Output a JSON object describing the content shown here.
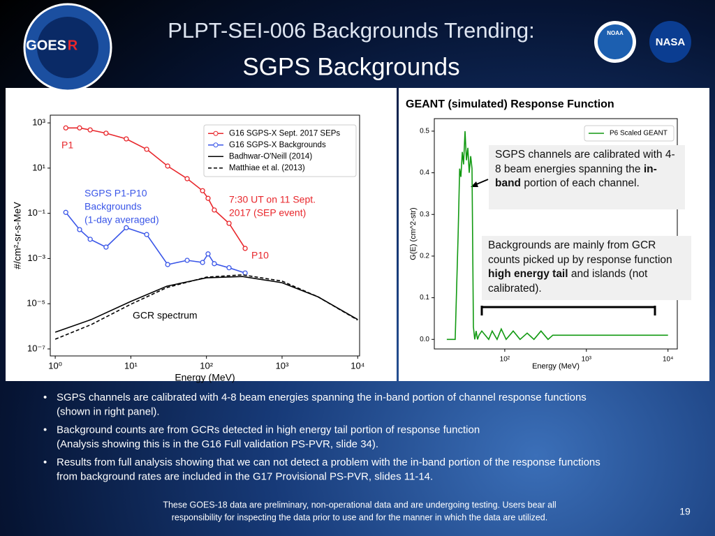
{
  "header": {
    "title_lines": [
      "PLPT-SEI-006 Backgrounds Trending:",
      "SGPS Backgrounds"
    ],
    "logos": [
      "GOES",
      "R",
      "NOAA",
      "NASA"
    ]
  },
  "chart_data": [
    {
      "type": "line",
      "xlabel": "Energy (MeV)",
      "ylabel": "#/cm²-sr-s-MeV",
      "xlog": true,
      "ylog": true,
      "xlim": [
        0.86,
        10600
      ],
      "ylim": [
        4.9e-08,
        2200
      ],
      "xticks": [
        {
          "value": 1,
          "label": "10⁰"
        },
        {
          "value": 10,
          "label": "10¹"
        },
        {
          "value": 100,
          "label": "10²"
        },
        {
          "value": 1000,
          "label": "10³"
        },
        {
          "value": 10000,
          "label": "10⁴"
        }
      ],
      "yticks": [
        {
          "value": 1e-07,
          "label": "10⁻⁷"
        },
        {
          "value": 1e-05,
          "label": "10⁻⁵"
        },
        {
          "value": 0.001,
          "label": "10⁻³"
        },
        {
          "value": 0.1,
          "label": "10⁻¹"
        },
        {
          "value": 10,
          "label": "10¹"
        },
        {
          "value": 1000,
          "label": "10³"
        }
      ],
      "legend": "upper right",
      "series": [
        {
          "name": "G16 SGPS-X Sept. 2017 SEPs",
          "color": "#e8262b",
          "marker": "circle",
          "style": "solid",
          "x": [
            1.38,
            2.1,
            2.9,
            4.7,
            8.7,
            16.2,
            30.7,
            55.6,
            88.8,
            105,
            127,
            199,
            325
          ],
          "values": [
            600,
            600,
            490,
            350,
            196,
            68,
            12.3,
            3.4,
            1.0,
            0.46,
            0.14,
            0.036,
            0.0028
          ]
        },
        {
          "name": "G16 SGPS-X Backgrounds",
          "color": "#3a56e8",
          "marker": "circle",
          "style": "solid",
          "x": [
            1.38,
            2.1,
            2.9,
            4.7,
            8.7,
            16.2,
            30.7,
            55.6,
            88.8,
            105,
            127,
            199,
            325
          ],
          "values": [
            0.11,
            0.019,
            0.0071,
            0.0032,
            0.023,
            0.0115,
            0.00054,
            0.00083,
            0.00067,
            0.0016,
            0.00059,
            0.00039,
            0.00023
          ]
        },
        {
          "name": "Badhwar-O'Neill (2014)",
          "color": "#000000",
          "style": "solid",
          "x": [
            1,
            3,
            10,
            30,
            100,
            300,
            1000,
            3000,
            10000
          ],
          "values": [
            5.5e-07,
            2e-06,
            1.26e-05,
            6e-05,
            0.00014,
            0.00016,
            8.5e-05,
            2e-05,
            2e-06
          ]
        },
        {
          "name": "Matthiae et al. (2013)",
          "color": "#000000",
          "style": "dashed",
          "x": [
            1,
            3,
            10,
            30,
            100,
            300,
            1000,
            3000,
            10000
          ],
          "values": [
            2.7e-07,
            1.2e-06,
            9.5e-06,
            5.2e-05,
            0.00015,
            0.00019,
            0.0001,
            2e-05,
            1.9e-06
          ]
        }
      ],
      "annotations": [
        {
          "lines": [
            "P1"
          ],
          "color": "#e8262b"
        },
        {
          "lines": [
            "SGPS P1-P10",
            "Backgrounds",
            "(1-day averaged)"
          ],
          "color": "#3a56e8"
        },
        {
          "lines": [
            "7:30 UT on 11 Sept.",
            "2017 (SEP event)"
          ],
          "color": "#e8262b"
        },
        {
          "lines": [
            "P10"
          ],
          "color": "#e8262b"
        },
        {
          "lines": [
            "GCR spectrum"
          ],
          "color": "#000000"
        }
      ]
    },
    {
      "type": "line",
      "title": "GEANT (simulated) Response Function",
      "xlabel": "Energy (MeV)",
      "ylabel": "G(E) (cm^2-str)",
      "xlog": true,
      "ylog": false,
      "xlim": [
        13.7,
        13000
      ],
      "ylim": [
        -0.023,
        0.53
      ],
      "xticks": [
        {
          "value": 100,
          "label": "10²"
        },
        {
          "value": 1000,
          "label": "10³"
        },
        {
          "value": 10000,
          "label": "10⁴"
        }
      ],
      "yticks": [
        {
          "value": 0,
          "label": "0.0"
        },
        0.1,
        0.2,
        0.3,
        0.4,
        0.5
      ],
      "legend": "upper right",
      "series": [
        {
          "name": "P6 Scaled GEANT",
          "color": "#119911",
          "style": "solid",
          "x": [
            19.5,
            24.7,
            26.8,
            28.0,
            29.0,
            30.2,
            31.3,
            32.6,
            33.9,
            35.3,
            36.7,
            38.2,
            39.7,
            41.3,
            42.9,
            44.6,
            46.4,
            48.3,
            52.3,
            63.6,
            70.2,
            80.5,
            90.6,
            104,
            127,
            154,
            188,
            228,
            278,
            339,
            388,
            413,
            455,
            3300,
            10000
          ],
          "values": [
            0,
            0,
            0.25,
            0.41,
            0.39,
            0.45,
            0.42,
            0.5,
            0.43,
            0.46,
            0.4,
            0.44,
            0.41,
            0.03,
            0,
            0.02,
            0,
            0.01,
            0.02,
            0,
            0.02,
            0,
            0.025,
            0,
            0.02,
            0,
            0.015,
            0,
            0.02,
            0,
            0.01,
            0.01,
            0.01,
            0.01,
            0.01
          ]
        }
      ],
      "callouts": [
        [
          "SGPS channels are calibrated with 4-8 beam energies spanning the ",
          "in-band",
          " portion of each channel."
        ],
        [
          "Backgrounds are mainly from GCR counts picked up by response function ",
          "high energy tail",
          " and islands (not calibrated)."
        ]
      ]
    }
  ],
  "bullets": [
    [
      "SGPS channels are calibrated with 4-8 beam energies spanning the in-band portion of channel response functions",
      "(shown in right panel)."
    ],
    [
      "Background counts are from GCRs detected in high energy tail portion of response function",
      "(Analysis showing this is in the G16 Full validation PS-PVR, slide 34)."
    ],
    [
      "Results from full analysis showing that we can not detect a problem with the in-band portion of the response functions",
      "from background rates are included in the G17 Provisional PS-PVR, slides 11-14."
    ]
  ],
  "footer": {
    "disclaimer": [
      "These GOES-18 data are preliminary, non-operational data and are undergoing testing. Users bear all",
      "responsibility for inspecting the data prior to use and for the manner in which the data are utilized."
    ],
    "page": "19"
  }
}
